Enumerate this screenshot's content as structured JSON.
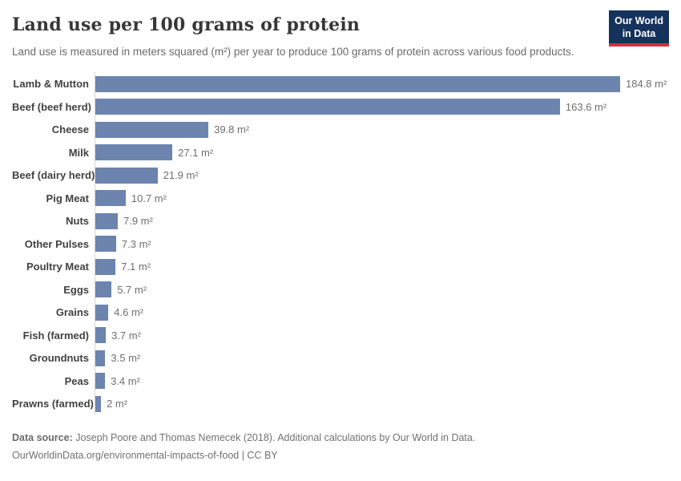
{
  "header": {
    "title": "Land use per 100 grams of protein",
    "subtitle": "Land use is measured in meters squared (m²) per year to produce 100 grams of protein across various food products.",
    "logo": {
      "line1": "Our World",
      "line2": "in Data"
    }
  },
  "chart_data": {
    "type": "bar",
    "orientation": "horizontal",
    "title": "Land use per 100 grams of protein",
    "xlabel": "",
    "ylabel": "",
    "unit": "m²",
    "xlim": [
      0,
      184.8
    ],
    "grid": false,
    "legend": "none",
    "value_label_position": "end-of-bar",
    "bar_color": "#6c84ae",
    "categories": [
      "Lamb & Mutton",
      "Beef (beef herd)",
      "Cheese",
      "Milk",
      "Beef (dairy herd)",
      "Pig Meat",
      "Nuts",
      "Other Pulses",
      "Poultry Meat",
      "Eggs",
      "Grains",
      "Fish (farmed)",
      "Groundnuts",
      "Peas",
      "Prawns (farmed)"
    ],
    "values": [
      184.8,
      163.6,
      39.8,
      27.1,
      21.9,
      10.7,
      7.9,
      7.3,
      7.1,
      5.7,
      4.6,
      3.7,
      3.5,
      3.4,
      2
    ],
    "value_labels": [
      "184.8 m²",
      "163.6 m²",
      "39.8 m²",
      "27.1 m²",
      "21.9 m²",
      "10.7 m²",
      "7.9 m²",
      "7.3 m²",
      "7.1 m²",
      "5.7 m²",
      "4.6 m²",
      "3.7 m²",
      "3.5 m²",
      "3.4 m²",
      "2 m²"
    ]
  },
  "footer": {
    "source_label": "Data source:",
    "source_text": " Joseph Poore and Thomas Nemecek (2018). Additional calculations by Our World in Data.",
    "link_line": "OurWorldinData.org/environmental-impacts-of-food | CC BY"
  },
  "colors": {
    "bar": "#6c84ae",
    "axis_line": "#d6d6d6",
    "logo_background": "#14325c",
    "logo_stripe": "#cf303e",
    "title_text": "#373737",
    "subtitle_text": "#6b6b6b",
    "value_text": "#6e6e6e"
  }
}
